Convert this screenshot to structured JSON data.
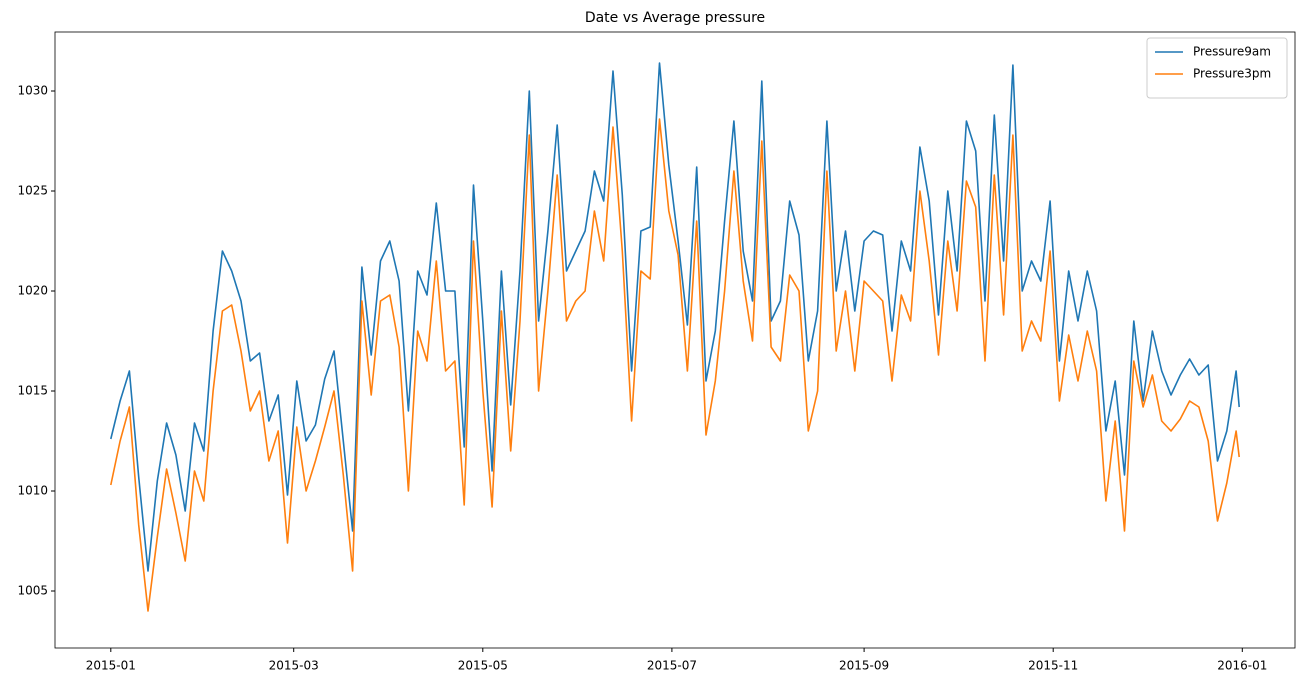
{
  "chart_data": {
    "type": "line",
    "title": "Date vs Average pressure",
    "x": [
      "2015-01-01",
      "2015-01-04",
      "2015-01-07",
      "2015-01-10",
      "2015-01-13",
      "2015-01-16",
      "2015-01-19",
      "2015-01-22",
      "2015-01-25",
      "2015-01-28",
      "2015-01-31",
      "2015-02-03",
      "2015-02-06",
      "2015-02-09",
      "2015-02-12",
      "2015-02-15",
      "2015-02-18",
      "2015-02-21",
      "2015-02-24",
      "2015-02-27",
      "2015-03-02",
      "2015-03-05",
      "2015-03-08",
      "2015-03-11",
      "2015-03-14",
      "2015-03-17",
      "2015-03-20",
      "2015-03-23",
      "2015-03-26",
      "2015-03-29",
      "2015-04-01",
      "2015-04-04",
      "2015-04-07",
      "2015-04-10",
      "2015-04-13",
      "2015-04-16",
      "2015-04-19",
      "2015-04-22",
      "2015-04-25",
      "2015-04-28",
      "2015-05-01",
      "2015-05-04",
      "2015-05-07",
      "2015-05-10",
      "2015-05-13",
      "2015-05-16",
      "2015-05-19",
      "2015-05-22",
      "2015-05-25",
      "2015-05-28",
      "2015-05-31",
      "2015-06-03",
      "2015-06-06",
      "2015-06-09",
      "2015-06-12",
      "2015-06-15",
      "2015-06-18",
      "2015-06-21",
      "2015-06-24",
      "2015-06-27",
      "2015-06-30",
      "2015-07-03",
      "2015-07-06",
      "2015-07-09",
      "2015-07-12",
      "2015-07-15",
      "2015-07-18",
      "2015-07-21",
      "2015-07-24",
      "2015-07-27",
      "2015-07-30",
      "2015-08-02",
      "2015-08-05",
      "2015-08-08",
      "2015-08-11",
      "2015-08-14",
      "2015-08-17",
      "2015-08-20",
      "2015-08-23",
      "2015-08-26",
      "2015-08-29",
      "2015-09-01",
      "2015-09-04",
      "2015-09-07",
      "2015-09-10",
      "2015-09-13",
      "2015-09-16",
      "2015-09-19",
      "2015-09-22",
      "2015-09-25",
      "2015-09-28",
      "2015-10-01",
      "2015-10-04",
      "2015-10-07",
      "2015-10-10",
      "2015-10-13",
      "2015-10-16",
      "2015-10-19",
      "2015-10-22",
      "2015-10-25",
      "2015-10-28",
      "2015-10-31",
      "2015-11-03",
      "2015-11-06",
      "2015-11-09",
      "2015-11-12",
      "2015-11-15",
      "2015-11-18",
      "2015-11-21",
      "2015-11-24",
      "2015-11-27",
      "2015-11-30",
      "2015-12-03",
      "2015-12-06",
      "2015-12-09",
      "2015-12-12",
      "2015-12-15",
      "2015-12-18",
      "2015-12-21",
      "2015-12-24",
      "2015-12-27",
      "2015-12-30",
      "2015-12-31"
    ],
    "series": [
      {
        "name": "Pressure9am",
        "color": "#1f77b4",
        "values": [
          1012.6,
          1014.5,
          1016,
          1010.7,
          1006,
          1010.5,
          1013.4,
          1011.8,
          1009,
          1013.4,
          1012,
          1018,
          1022,
          1021,
          1019.5,
          1016.5,
          1016.9,
          1013.5,
          1014.8,
          1009.8,
          1015.5,
          1012.5,
          1013.3,
          1015.6,
          1017,
          1012.5,
          1008,
          1021.2,
          1016.8,
          1021.5,
          1022.5,
          1020.5,
          1014,
          1021,
          1019.8,
          1024.4,
          1020,
          1020,
          1012.2,
          1025.3,
          1018.5,
          1011,
          1021,
          1014.3,
          1021,
          1030,
          1018.5,
          1023,
          1028.3,
          1021,
          1022,
          1023,
          1026,
          1024.5,
          1031,
          1024.8,
          1016,
          1023,
          1023.2,
          1031.4,
          1026.3,
          1022.5,
          1018.3,
          1026.2,
          1015.5,
          1018,
          1023.5,
          1028.5,
          1022,
          1019.5,
          1030.5,
          1018.5,
          1019.5,
          1024.5,
          1022.8,
          1016.5,
          1019,
          1028.5,
          1020,
          1023,
          1019,
          1022.5,
          1023,
          1022.8,
          1018,
          1022.5,
          1021,
          1027.2,
          1024.5,
          1018.8,
          1025,
          1021,
          1028.5,
          1027,
          1019.5,
          1028.8,
          1021.5,
          1031.3,
          1020,
          1021.5,
          1020.5,
          1024.5,
          1016.5,
          1021,
          1018.5,
          1021,
          1019,
          1013,
          1015.5,
          1010.8,
          1018.5,
          1014.5,
          1018,
          1016,
          1014.8,
          1015.8,
          1016.6,
          1015.8,
          1016.3,
          1011.5,
          1013,
          1016,
          1014.2
        ]
      },
      {
        "name": "Pressure3pm",
        "color": "#ff7f0e",
        "values": [
          1010.3,
          1012.5,
          1014.2,
          1008.3,
          1004,
          1007.7,
          1011.1,
          1008.9,
          1006.5,
          1011,
          1009.5,
          1015,
          1019,
          1019.3,
          1017,
          1014,
          1015,
          1011.5,
          1013,
          1007.4,
          1013.2,
          1010,
          1011.5,
          1013.2,
          1015,
          1010.8,
          1006,
          1019.5,
          1014.8,
          1019.5,
          1019.8,
          1017.2,
          1010,
          1018,
          1016.5,
          1021.5,
          1016,
          1016.5,
          1009.3,
          1022.5,
          1015,
          1009.2,
          1019,
          1012,
          1018.5,
          1027.8,
          1015,
          1020,
          1025.8,
          1018.5,
          1019.5,
          1020,
          1024,
          1021.5,
          1028.2,
          1022,
          1013.5,
          1021,
          1020.6,
          1028.6,
          1024,
          1021.8,
          1016,
          1023.5,
          1012.8,
          1015.5,
          1020,
          1026,
          1020.5,
          1017.5,
          1027.5,
          1017.2,
          1016.5,
          1020.8,
          1020,
          1013,
          1015,
          1026,
          1017,
          1020,
          1016,
          1020.5,
          1020,
          1019.5,
          1015.5,
          1019.8,
          1018.5,
          1025,
          1021.5,
          1016.8,
          1022.5,
          1019,
          1025.5,
          1024.2,
          1016.5,
          1025.8,
          1018.8,
          1027.8,
          1017,
          1018.5,
          1017.5,
          1022,
          1014.5,
          1017.8,
          1015.5,
          1018,
          1016,
          1009.5,
          1013.5,
          1008,
          1016.5,
          1014.2,
          1015.8,
          1013.5,
          1013,
          1013.6,
          1014.5,
          1014.2,
          1012.5,
          1008.5,
          1010.4,
          1013,
          1011.7
        ]
      }
    ],
    "xlim": [
      "2014-12-14",
      "2016-01-18"
    ],
    "xticks": [
      {
        "value": "2015-01-01",
        "label": "2015-01"
      },
      {
        "value": "2015-03-01",
        "label": "2015-03"
      },
      {
        "value": "2015-05-01",
        "label": "2015-05"
      },
      {
        "value": "2015-07-01",
        "label": "2015-07"
      },
      {
        "value": "2015-09-01",
        "label": "2015-09"
      },
      {
        "value": "2015-11-01",
        "label": "2015-11"
      },
      {
        "value": "2016-01-01",
        "label": "2016-01"
      }
    ],
    "ylim": [
      1002.15,
      1032.95
    ],
    "yticks": [
      1005,
      1010,
      1015,
      1020,
      1025,
      1030
    ],
    "legend": "upper right"
  }
}
